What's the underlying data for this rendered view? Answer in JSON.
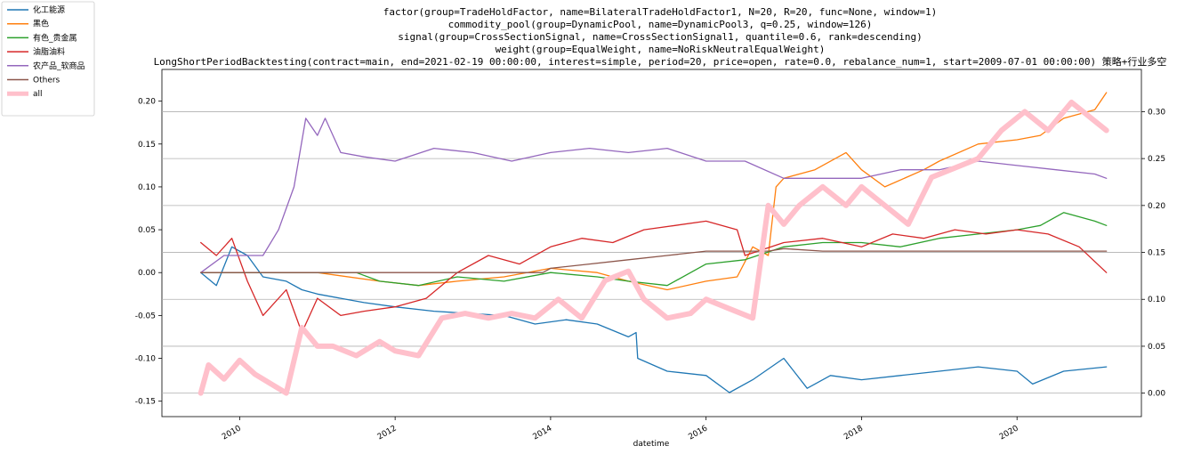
{
  "chart_data": {
    "type": "line",
    "title_lines": [
      "factor(group=TradeHoldFactor, name=BilateralTradeHoldFactor1, N=20, R=20, func=None, window=1)",
      "commodity_pool(group=DynamicPool, name=DynamicPool3, q=0.25, window=126)",
      "signal(group=CrossSectionSignal, name=CrossSectionSignal1, quantile=0.6, rank=descending)",
      "weight(group=EqualWeight, name=NoRiskNeutralEqualWeight)",
      "LongShortPeriodBacktesting(contract=main, end=2021-02-19 00:00:00, interest=simple, period=20, price=open, rate=0.0, rebalance_num=1, start=2009-07-01 00:00:00)  策略+行业多空"
    ],
    "xlabel": "datetime",
    "xlim": [
      2009.0,
      2021.6
    ],
    "x_ticks": [
      2010,
      2012,
      2014,
      2016,
      2018,
      2020
    ],
    "x_tick_labels": [
      "2010",
      "2012",
      "2014",
      "2016",
      "2018",
      "2020"
    ],
    "ylim_left": [
      -0.168,
      0.237
    ],
    "y_ticks_left": [
      -0.15,
      -0.1,
      -0.05,
      0.0,
      0.05,
      0.1,
      0.15,
      0.2
    ],
    "y_tick_labels_left": [
      "-0.15",
      "-0.10",
      "-0.05",
      "0.00",
      "0.05",
      "0.10",
      "0.15",
      "0.20"
    ],
    "ylim_right": [
      -0.025,
      0.345
    ],
    "y_ticks_right": [
      0.0,
      0.05,
      0.1,
      0.15,
      0.2,
      0.25,
      0.3
    ],
    "y_tick_labels_right": [
      "0.00",
      "0.05",
      "0.10",
      "0.15",
      "0.20",
      "0.25",
      "0.30"
    ],
    "grid": "horizontal lines at right-axis ticks",
    "legend_position": "outside top-left",
    "series": [
      {
        "name": "化工能源",
        "color": "#1f77b4",
        "axis": "left",
        "x": [
          2009.5,
          2009.7,
          2009.9,
          2010.1,
          2010.3,
          2010.6,
          2010.8,
          2011.0,
          2011.3,
          2011.6,
          2012.0,
          2012.5,
          2013.0,
          2013.4,
          2013.8,
          2014.2,
          2014.6,
          2015.0,
          2015.1,
          2015.12,
          2015.5,
          2016.0,
          2016.3,
          2016.6,
          2017.0,
          2017.3,
          2017.6,
          2018.0,
          2018.5,
          2019.0,
          2019.5,
          2020.0,
          2020.2,
          2020.6,
          2021.15
        ],
        "y": [
          0.0,
          -0.015,
          0.03,
          0.02,
          -0.005,
          -0.01,
          -0.02,
          -0.025,
          -0.03,
          -0.035,
          -0.04,
          -0.045,
          -0.048,
          -0.05,
          -0.06,
          -0.055,
          -0.06,
          -0.075,
          -0.07,
          -0.1,
          -0.115,
          -0.12,
          -0.14,
          -0.125,
          -0.1,
          -0.135,
          -0.12,
          -0.125,
          -0.12,
          -0.115,
          -0.11,
          -0.115,
          -0.13,
          -0.115,
          -0.11
        ]
      },
      {
        "name": "黑色",
        "color": "#ff7f0e",
        "axis": "left",
        "x": [
          2009.5,
          2011.0,
          2011.8,
          2012.3,
          2012.8,
          2013.4,
          2014.0,
          2014.6,
          2015.0,
          2015.5,
          2016.0,
          2016.4,
          2016.6,
          2016.8,
          2016.9,
          2017.0,
          2017.4,
          2017.8,
          2018.0,
          2018.3,
          2018.8,
          2019.0,
          2019.5,
          2020.0,
          2020.3,
          2020.6,
          2021.0,
          2021.15
        ],
        "y": [
          0.0,
          0.0,
          -0.01,
          -0.015,
          -0.01,
          -0.005,
          0.005,
          0.0,
          -0.01,
          -0.02,
          -0.01,
          -0.005,
          0.03,
          0.02,
          0.1,
          0.11,
          0.12,
          0.14,
          0.12,
          0.1,
          0.12,
          0.13,
          0.15,
          0.155,
          0.16,
          0.18,
          0.19,
          0.21
        ]
      },
      {
        "name": "有色_贵金属",
        "color": "#2ca02c",
        "axis": "left",
        "x": [
          2009.5,
          2011.5,
          2011.8,
          2012.3,
          2012.8,
          2013.4,
          2014.0,
          2014.6,
          2015.0,
          2015.5,
          2016.0,
          2016.5,
          2017.0,
          2017.5,
          2018.0,
          2018.5,
          2019.0,
          2019.5,
          2020.0,
          2020.3,
          2020.6,
          2021.0,
          2021.15
        ],
        "y": [
          0.0,
          0.0,
          -0.01,
          -0.015,
          -0.005,
          -0.01,
          0.0,
          -0.005,
          -0.01,
          -0.015,
          0.01,
          0.015,
          0.03,
          0.035,
          0.035,
          0.03,
          0.04,
          0.045,
          0.05,
          0.055,
          0.07,
          0.06,
          0.055
        ]
      },
      {
        "name": "油脂油料",
        "color": "#d62728",
        "axis": "left",
        "x": [
          2009.5,
          2009.7,
          2009.9,
          2010.1,
          2010.3,
          2010.6,
          2010.8,
          2011.0,
          2011.3,
          2011.6,
          2012.0,
          2012.4,
          2012.8,
          2013.2,
          2013.6,
          2014.0,
          2014.4,
          2014.8,
          2015.2,
          2015.6,
          2016.0,
          2016.4,
          2016.5,
          2017.0,
          2017.5,
          2018.0,
          2018.4,
          2018.8,
          2019.2,
          2019.6,
          2020.0,
          2020.4,
          2020.8,
          2021.15
        ],
        "y": [
          0.035,
          0.02,
          0.04,
          -0.01,
          -0.05,
          -0.02,
          -0.07,
          -0.03,
          -0.05,
          -0.045,
          -0.04,
          -0.03,
          0.0,
          0.02,
          0.01,
          0.03,
          0.04,
          0.035,
          0.05,
          0.055,
          0.06,
          0.05,
          0.02,
          0.035,
          0.04,
          0.03,
          0.045,
          0.04,
          0.05,
          0.045,
          0.05,
          0.045,
          0.03,
          0.0
        ]
      },
      {
        "name": "农产品_软商品",
        "color": "#9467bd",
        "axis": "left",
        "x": [
          2009.5,
          2009.8,
          2010.0,
          2010.3,
          2010.5,
          2010.7,
          2010.85,
          2011.0,
          2011.1,
          2011.3,
          2011.6,
          2012.0,
          2012.5,
          2013.0,
          2013.5,
          2014.0,
          2014.5,
          2015.0,
          2015.5,
          2016.0,
          2016.5,
          2017.0,
          2017.5,
          2018.0,
          2018.5,
          2019.0,
          2019.5,
          2020.0,
          2020.5,
          2021.0,
          2021.15
        ],
        "y": [
          0.0,
          0.02,
          0.02,
          0.02,
          0.05,
          0.1,
          0.18,
          0.16,
          0.18,
          0.14,
          0.135,
          0.13,
          0.145,
          0.14,
          0.13,
          0.14,
          0.145,
          0.14,
          0.145,
          0.13,
          0.13,
          0.11,
          0.11,
          0.11,
          0.12,
          0.12,
          0.13,
          0.125,
          0.12,
          0.115,
          0.11
        ]
      },
      {
        "name": "Others",
        "color": "#8c564b",
        "axis": "left",
        "x": [
          2009.5,
          2013.9,
          2014.0,
          2014.5,
          2015.0,
          2015.5,
          2016.0,
          2016.8,
          2017.0,
          2017.5,
          2021.15
        ],
        "y": [
          0.0,
          0.0,
          0.005,
          0.01,
          0.015,
          0.02,
          0.025,
          0.025,
          0.028,
          0.025,
          0.025
        ]
      },
      {
        "name": "all",
        "color": "#ffc0cb",
        "axis": "right",
        "linewidth": 6,
        "x": [
          2009.5,
          2009.6,
          2009.8,
          2010.0,
          2010.2,
          2010.4,
          2010.6,
          2010.8,
          2011.0,
          2011.2,
          2011.5,
          2011.8,
          2012.0,
          2012.3,
          2012.6,
          2012.9,
          2013.2,
          2013.5,
          2013.8,
          2014.1,
          2014.4,
          2014.7,
          2015.0,
          2015.2,
          2015.5,
          2015.8,
          2016.0,
          2016.3,
          2016.6,
          2016.8,
          2017.0,
          2017.2,
          2017.5,
          2017.8,
          2018.0,
          2018.3,
          2018.6,
          2018.9,
          2019.2,
          2019.5,
          2019.8,
          2020.1,
          2020.4,
          2020.7,
          2021.0,
          2021.15
        ],
        "y": [
          0.0,
          0.03,
          0.015,
          0.035,
          0.02,
          0.01,
          0.0,
          0.07,
          0.05,
          0.05,
          0.04,
          0.055,
          0.045,
          0.04,
          0.08,
          0.085,
          0.08,
          0.085,
          0.08,
          0.1,
          0.08,
          0.12,
          0.13,
          0.1,
          0.08,
          0.085,
          0.1,
          0.09,
          0.08,
          0.2,
          0.18,
          0.2,
          0.22,
          0.2,
          0.22,
          0.2,
          0.18,
          0.23,
          0.24,
          0.25,
          0.28,
          0.3,
          0.28,
          0.31,
          0.29,
          0.28
        ]
      }
    ]
  }
}
